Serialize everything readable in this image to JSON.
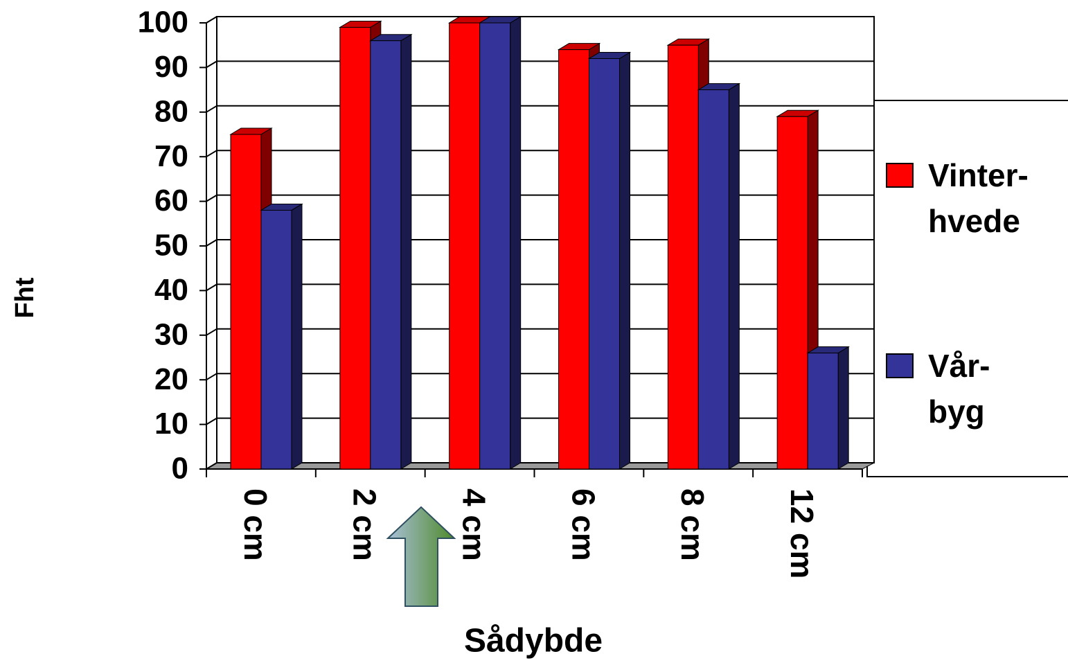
{
  "chart_data": {
    "type": "bar3d",
    "x_label": "Sådybde",
    "y_label": "Fht",
    "categories": [
      "0 cm",
      "2 cm",
      "4 cm",
      "6 cm",
      "8 cm",
      "12 cm"
    ],
    "series": [
      {
        "name": "Vinter-\nhvede",
        "color": "#ff0000",
        "values": [
          75,
          99,
          100,
          94,
          95,
          79
        ]
      },
      {
        "name": "Vår-\nbyg",
        "color": "#333399",
        "values": [
          58,
          96,
          100,
          92,
          85,
          26
        ]
      }
    ],
    "ylim": [
      0,
      100
    ],
    "yticks": [
      0,
      10,
      20,
      30,
      40,
      50,
      60,
      70,
      80,
      90,
      100
    ],
    "grid": true,
    "legend": "right"
  }
}
